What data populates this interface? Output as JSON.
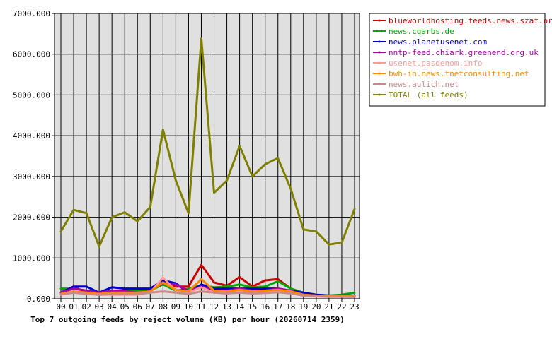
{
  "chart_data": {
    "type": "line",
    "title": "Top 7 outgoing feeds by reject volume (KB) per hour (20260714 2359)",
    "xlabel": "",
    "ylabel": "",
    "categories": [
      "00",
      "01",
      "02",
      "03",
      "04",
      "05",
      "06",
      "07",
      "08",
      "09",
      "10",
      "11",
      "12",
      "13",
      "14",
      "15",
      "16",
      "17",
      "18",
      "19",
      "20",
      "21",
      "22",
      "23"
    ],
    "yticks": [
      "0.000",
      "1000.000",
      "2000.000",
      "3000.000",
      "4000.000",
      "5000.000",
      "6000.000",
      "7000.000"
    ],
    "ylim": [
      0,
      7000
    ],
    "grid": true,
    "legend_position": "top-right, outside plot",
    "series": [
      {
        "name": "blueworldhosting.feeds.news.szaf.org",
        "color": "#cc0000",
        "values": [
          150,
          300,
          150,
          150,
          200,
          150,
          150,
          200,
          450,
          300,
          300,
          830,
          400,
          320,
          530,
          300,
          450,
          480,
          250,
          100,
          80,
          60,
          50,
          50
        ]
      },
      {
        "name": "news.cgarbs.de",
        "color": "#00aa00",
        "values": [
          250,
          250,
          200,
          150,
          200,
          200,
          200,
          200,
          350,
          200,
          250,
          330,
          280,
          300,
          350,
          280,
          300,
          430,
          250,
          150,
          100,
          80,
          100,
          150
        ]
      },
      {
        "name": "news.planetusenet.com",
        "color": "#0000cc",
        "values": [
          150,
          300,
          300,
          150,
          280,
          250,
          250,
          250,
          450,
          380,
          150,
          350,
          250,
          250,
          250,
          250,
          250,
          250,
          200,
          150,
          100,
          80,
          80,
          80
        ]
      },
      {
        "name": "nntp-feed.chiark.greenend.org.uk",
        "color": "#aa00aa",
        "values": [
          150,
          250,
          200,
          150,
          200,
          200,
          150,
          200,
          380,
          350,
          200,
          300,
          200,
          200,
          250,
          200,
          200,
          250,
          200,
          100,
          80,
          60,
          60,
          60
        ]
      },
      {
        "name": "usenet.pasdenom.info",
        "color": "#ff9999",
        "values": [
          100,
          150,
          120,
          100,
          100,
          100,
          100,
          150,
          520,
          200,
          150,
          280,
          150,
          150,
          180,
          150,
          150,
          200,
          150,
          80,
          60,
          50,
          50,
          50
        ]
      },
      {
        "name": "bwh-in.news.tnetconsulting.net",
        "color": "#ff8800",
        "values": [
          120,
          180,
          150,
          120,
          150,
          150,
          150,
          180,
          400,
          220,
          180,
          480,
          200,
          180,
          220,
          180,
          200,
          220,
          180,
          100,
          80,
          60,
          60,
          60
        ]
      },
      {
        "name": "news.aulich.net",
        "color": "#cc8888",
        "values": [
          100,
          150,
          120,
          100,
          120,
          120,
          120,
          150,
          180,
          150,
          120,
          180,
          150,
          130,
          150,
          130,
          140,
          160,
          130,
          80,
          60,
          50,
          50,
          50
        ]
      },
      {
        "name": "TOTAL (all feeds)",
        "color": "#808000",
        "values": [
          1650,
          2180,
          2100,
          1280,
          2000,
          2120,
          1900,
          2250,
          4150,
          2900,
          2100,
          6380,
          2600,
          2900,
          3750,
          3000,
          3300,
          3450,
          2700,
          1700,
          1650,
          1330,
          1380,
          2200
        ]
      }
    ]
  }
}
